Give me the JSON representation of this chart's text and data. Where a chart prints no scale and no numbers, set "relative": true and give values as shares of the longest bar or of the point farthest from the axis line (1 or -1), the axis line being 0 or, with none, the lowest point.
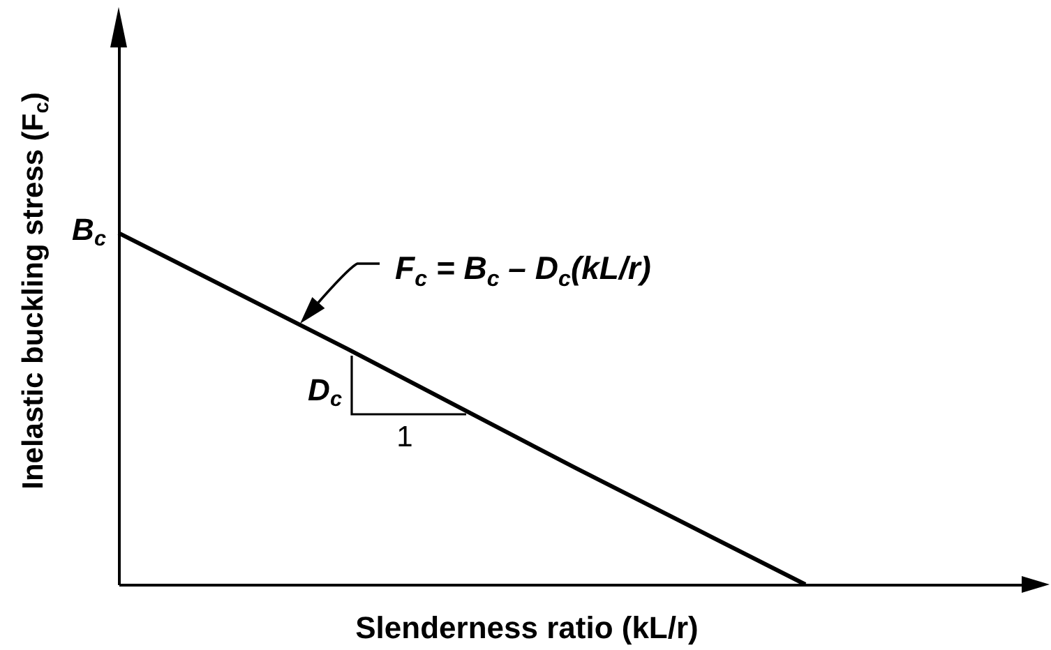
{
  "chart_data": {
    "type": "line",
    "relative": true,
    "xlabel": "Slenderness ratio (kL/r)",
    "ylabel": "Inelastic buckling stress (F$_{c}$)",
    "categories": [
      null,
      null,
      null,
      null,
      null
    ],
    "series": [
      {
        "color": "#000000",
        "values": [
          1,
          0.67,
          0.33,
          0,
          null
        ]
      }
    ],
    "tick_labels": false,
    "annotations": [
      "B$_{c}$",
      "F$_{c}$ = B$_{c}$ – D$_{c}$(kL/r)",
      "D$_{c}$",
      "1"
    ]
  }
}
